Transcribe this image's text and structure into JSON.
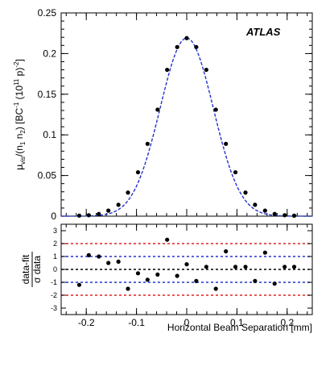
{
  "chart_data": [
    {
      "type": "scatter",
      "panel": "main",
      "brand_label": "ATLAS",
      "ylabel": {
        "mu": "μ",
        "mu_sub": "vis",
        "div": "/(n",
        "n1_sub": "1",
        "n2": " n",
        "n2_sub": "2",
        "bc": ") [BC",
        "bc_sup": "-1",
        "unit": " (10",
        "unit_sup": "11",
        "p": " p)",
        "p_sup": "-2",
        "close": "]"
      },
      "xlim": [
        -0.25,
        0.25
      ],
      "ylim": [
        0,
        0.25
      ],
      "yticks": [
        "0",
        "0.05",
        "0.1",
        "0.15",
        "0.2",
        "0.25"
      ],
      "grid": false,
      "colors": {
        "fit": "#2233cc",
        "points": "#000000"
      },
      "series": [
        {
          "kind": "points",
          "x": [
            -0.214,
            -0.195,
            -0.175,
            -0.156,
            -0.136,
            -0.117,
            -0.097,
            -0.078,
            -0.058,
            -0.039,
            -0.019,
            0.0,
            0.019,
            0.039,
            0.058,
            0.078,
            0.097,
            0.117,
            0.136,
            0.156,
            0.175,
            0.195,
            0.214
          ],
          "y": [
            0.0007,
            0.0012,
            0.0027,
            0.0068,
            0.014,
            0.029,
            0.054,
            0.089,
            0.131,
            0.18,
            0.208,
            0.219,
            0.208,
            0.18,
            0.131,
            0.089,
            0.054,
            0.029,
            0.014,
            0.0068,
            0.0027,
            0.0012,
            0.0006
          ]
        },
        {
          "kind": "fit",
          "style": "dashed",
          "amplitude": 0.219,
          "mean": 0.0,
          "sigma": 0.053
        }
      ]
    },
    {
      "type": "scatter",
      "panel": "residual",
      "ylabel_top": "data-fit",
      "ylabel_bottom": "σ data",
      "xlabel": "Horizontal Beam Separation [mm]",
      "xlim": [
        -0.25,
        0.25
      ],
      "ylim": [
        -3.5,
        3.5
      ],
      "xticks": [
        "-0.2",
        "-0.1",
        "0",
        "0.1",
        "0.2"
      ],
      "yticks": [
        "-3",
        "-2",
        "-1",
        "0",
        "1",
        "2",
        "3"
      ],
      "reference_lines": [
        {
          "y": 2,
          "color": "#e02020"
        },
        {
          "y": 1,
          "color": "#2233cc"
        },
        {
          "y": 0,
          "color": "#000000"
        },
        {
          "y": -1,
          "color": "#2233cc"
        },
        {
          "y": -2,
          "color": "#e02020"
        }
      ],
      "series": [
        {
          "kind": "points",
          "x": [
            -0.214,
            -0.195,
            -0.175,
            -0.156,
            -0.136,
            -0.117,
            -0.097,
            -0.078,
            -0.058,
            -0.039,
            -0.019,
            0.0,
            0.019,
            0.039,
            0.058,
            0.078,
            0.097,
            0.117,
            0.136,
            0.156,
            0.175,
            0.195,
            0.214
          ],
          "y": [
            -1.2,
            1.1,
            1.0,
            0.5,
            0.6,
            -1.5,
            -0.3,
            -0.8,
            -0.4,
            2.3,
            -0.5,
            0.4,
            -0.9,
            0.2,
            -1.5,
            1.4,
            0.2,
            0.2,
            -0.9,
            1.3,
            -1.1,
            0.2,
            0.2
          ]
        }
      ]
    }
  ]
}
